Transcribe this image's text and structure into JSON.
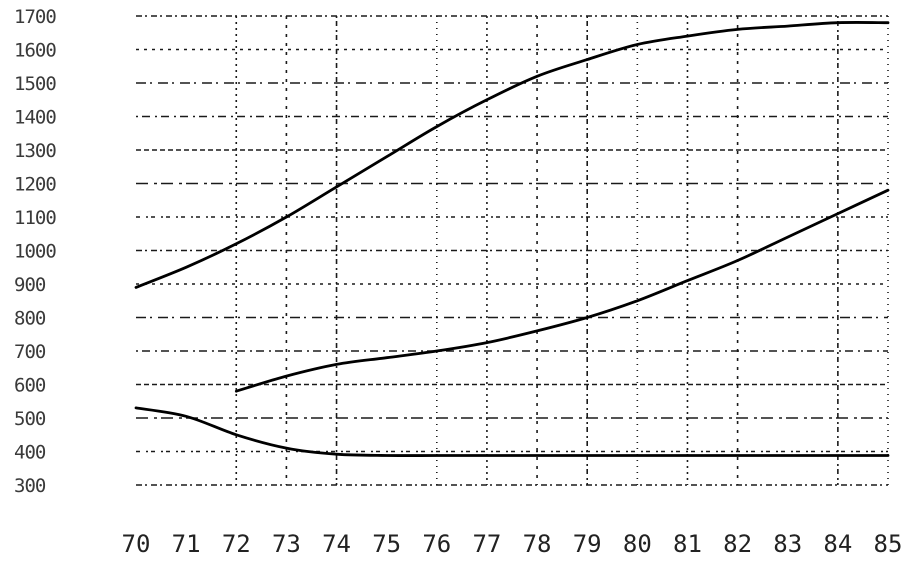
{
  "chart_data": {
    "type": "line",
    "title": "",
    "xlabel": "",
    "ylabel": "",
    "x": [
      "70",
      "71",
      "72",
      "73",
      "74",
      "75",
      "76",
      "77",
      "78",
      "79",
      "80",
      "81",
      "82",
      "83",
      "84",
      "85"
    ],
    "x_numeric": [
      70,
      71,
      72,
      73,
      74,
      75,
      76,
      77,
      78,
      79,
      80,
      81,
      82,
      83,
      84,
      85
    ],
    "yticks": [
      "1700",
      "1600",
      "1500",
      "1400",
      "1300",
      "1200",
      "1100",
      "1000",
      "900",
      "800",
      "700",
      "600",
      "500",
      "400",
      "300"
    ],
    "ylim": [
      300,
      1700
    ],
    "xlim": [
      70,
      85
    ],
    "grid": true,
    "grid_style": "dotted and dashed horizontal and vertical lines",
    "legend": "none",
    "series": [
      {
        "x": [
          70,
          71,
          72,
          73,
          74,
          75,
          76,
          77,
          78,
          79,
          80,
          81,
          82,
          83,
          84,
          85
        ],
        "values": [
          890,
          950,
          1020,
          1100,
          1190,
          1280,
          1370,
          1450,
          1520,
          1570,
          1615,
          1640,
          1660,
          1670,
          1680,
          1680
        ]
      },
      {
        "x": [
          72,
          73,
          74,
          75,
          76,
          77,
          78,
          79,
          80,
          81,
          82,
          83,
          84,
          85
        ],
        "values": [
          580,
          625,
          660,
          680,
          700,
          725,
          760,
          800,
          850,
          910,
          970,
          1040,
          1110,
          1180
        ]
      },
      {
        "x": [
          70,
          71,
          72,
          73,
          74,
          75,
          76,
          77,
          78,
          79,
          80,
          81,
          82,
          83,
          84,
          85
        ],
        "values": [
          530,
          505,
          450,
          410,
          392,
          388,
          388,
          388,
          388,
          388,
          388,
          388,
          388,
          388,
          388,
          388
        ]
      }
    ]
  }
}
